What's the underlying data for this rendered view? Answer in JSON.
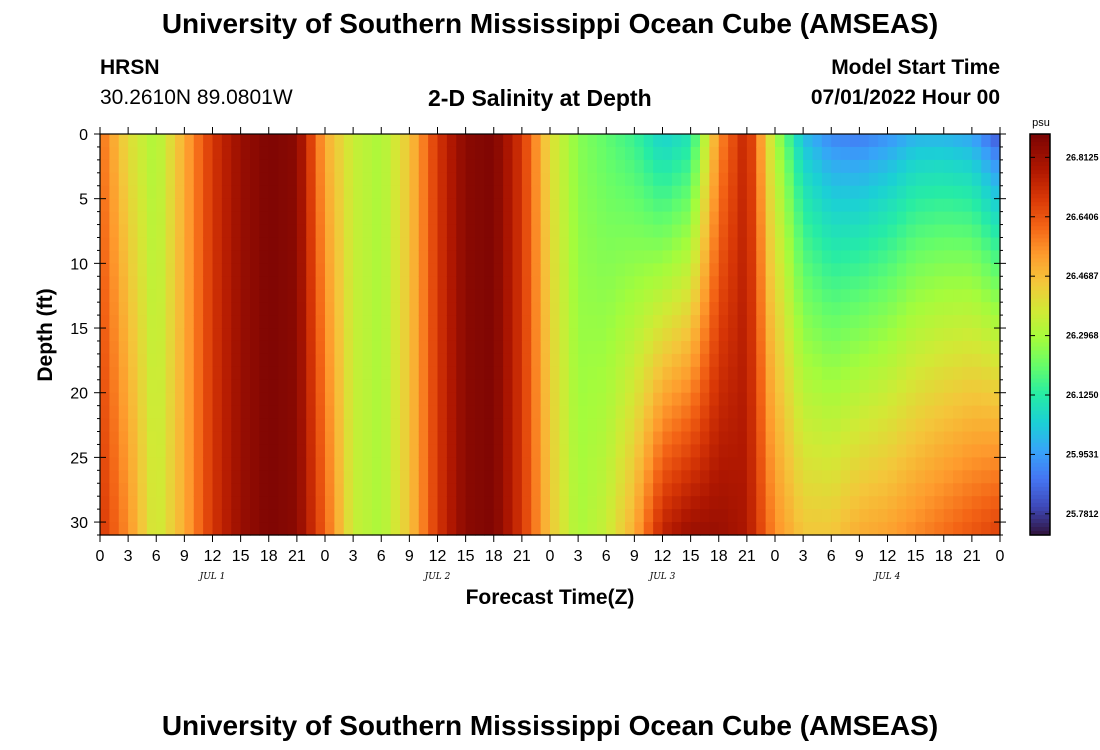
{
  "header": {
    "title": "University of Southern Mississippi Ocean Cube (AMSEAS)",
    "station": "HRSN",
    "coords": "30.2610N  89.0801W",
    "plot_title": "2-D Salinity at Depth",
    "model_label": "Model Start Time",
    "model_time": "07/01/2022 Hour 00"
  },
  "footer": {
    "title": "University of Southern Mississippi Ocean Cube (AMSEAS)"
  },
  "chart_data": {
    "type": "heatmap",
    "title": "2-D Salinity at Depth",
    "xlabel": "Forecast Time(Z)",
    "ylabel": "Depth (ft)",
    "xlim": [
      0,
      96
    ],
    "ylim": [
      0,
      31
    ],
    "y_inverted": true,
    "y_ticks": [
      0,
      5,
      10,
      15,
      20,
      25,
      30
    ],
    "x_tick_labels": [
      "0",
      "3",
      "6",
      "9",
      "12",
      "15",
      "18",
      "21",
      "0",
      "3",
      "6",
      "9",
      "12",
      "15",
      "18",
      "21",
      "0",
      "3",
      "6",
      "9",
      "12",
      "15",
      "18",
      "21",
      "0",
      "3",
      "6",
      "9",
      "12",
      "15",
      "18",
      "21",
      "0"
    ],
    "day_labels": [
      {
        "label": "JUL 1",
        "hour": 12
      },
      {
        "label": "JUL 2",
        "hour": 36
      },
      {
        "label": "JUL 3",
        "hour": 60
      },
      {
        "label": "JUL 4",
        "hour": 84
      }
    ],
    "colorbar": {
      "unit": "psu",
      "min": 25.72,
      "max": 26.88,
      "ticks": [
        "26.8125",
        "26.6406",
        "26.4687",
        "26.2968",
        "26.1250",
        "25.9531",
        "25.7812"
      ],
      "tick_values": [
        26.8125,
        26.6406,
        26.4687,
        26.2968,
        26.125,
        25.9531,
        25.7812
      ]
    },
    "grid": false,
    "description_values": {
      "hours": [
        0,
        3,
        6,
        9,
        12,
        15,
        18,
        21,
        24,
        27,
        30,
        33,
        36,
        39,
        42,
        45,
        48,
        51,
        54,
        57,
        60,
        63,
        66,
        69,
        72,
        75,
        78,
        81,
        84,
        87,
        90,
        93,
        96
      ],
      "surface_salinity": [
        26.6,
        26.4,
        26.3,
        26.5,
        26.7,
        26.82,
        26.87,
        26.85,
        26.5,
        26.35,
        26.3,
        26.45,
        26.7,
        26.85,
        26.87,
        26.7,
        26.4,
        26.25,
        26.2,
        26.15,
        26.05,
        26.1,
        26.55,
        26.75,
        26.3,
        26.0,
        25.9,
        25.88,
        25.92,
        25.98,
        25.98,
        25.95,
        25.8
      ],
      "bottom_salinity": [
        26.7,
        26.55,
        26.35,
        26.5,
        26.7,
        26.82,
        26.87,
        26.85,
        26.62,
        26.35,
        26.3,
        26.45,
        26.7,
        26.85,
        26.87,
        26.7,
        26.45,
        26.3,
        26.35,
        26.5,
        26.75,
        26.82,
        26.82,
        26.78,
        26.55,
        26.45,
        26.45,
        26.5,
        26.52,
        26.56,
        26.6,
        26.64,
        26.68
      ]
    }
  }
}
